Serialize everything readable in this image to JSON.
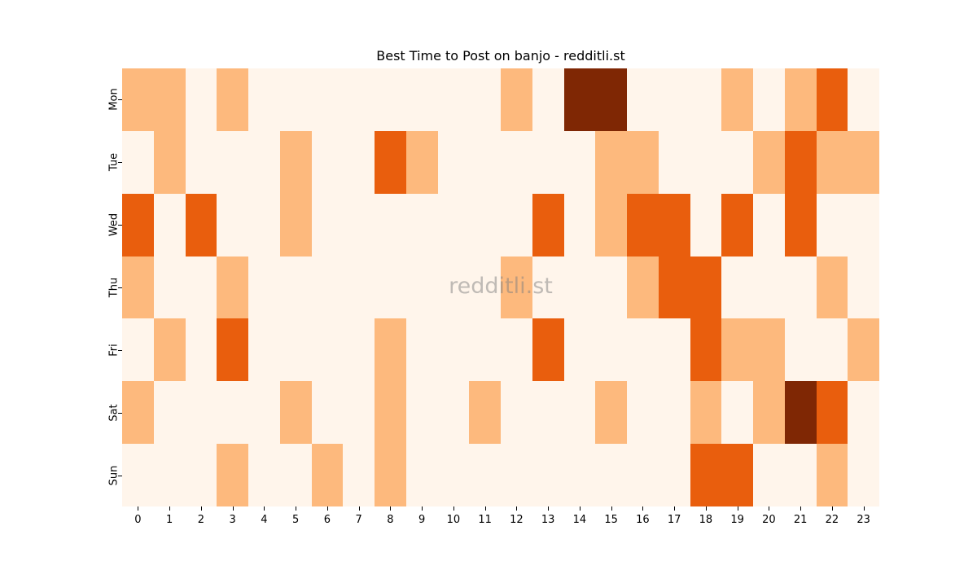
{
  "chart_data": {
    "type": "heatmap",
    "title": "Best Time to Post on banjo - redditli.st",
    "xlabel": "",
    "ylabel": "",
    "x": [
      "0",
      "1",
      "2",
      "3",
      "4",
      "5",
      "6",
      "7",
      "8",
      "9",
      "10",
      "11",
      "12",
      "13",
      "14",
      "15",
      "16",
      "17",
      "18",
      "19",
      "20",
      "21",
      "22",
      "23"
    ],
    "y": [
      "Mon",
      "Tue",
      "Wed",
      "Thu",
      "Fri",
      "Sat",
      "Sun"
    ],
    "values": [
      [
        1,
        1,
        0,
        1,
        0,
        0,
        0,
        0,
        0,
        0,
        0,
        0,
        1,
        0,
        3,
        3,
        0,
        0,
        0,
        1,
        0,
        1,
        2,
        0
      ],
      [
        0,
        1,
        0,
        0,
        0,
        1,
        0,
        0,
        2,
        1,
        0,
        0,
        0,
        0,
        0,
        1,
        1,
        0,
        0,
        0,
        1,
        2,
        1,
        1
      ],
      [
        2,
        0,
        2,
        0,
        0,
        1,
        0,
        0,
        0,
        0,
        0,
        0,
        0,
        2,
        0,
        1,
        2,
        2,
        0,
        2,
        0,
        2,
        0,
        0
      ],
      [
        1,
        0,
        0,
        1,
        0,
        0,
        0,
        0,
        0,
        0,
        0,
        0,
        1,
        0,
        0,
        0,
        1,
        2,
        2,
        0,
        0,
        0,
        1,
        0
      ],
      [
        0,
        1,
        0,
        2,
        0,
        0,
        0,
        0,
        1,
        0,
        0,
        0,
        0,
        2,
        0,
        0,
        0,
        0,
        2,
        1,
        1,
        0,
        0,
        1
      ],
      [
        1,
        0,
        0,
        0,
        0,
        1,
        0,
        0,
        1,
        0,
        0,
        1,
        0,
        0,
        0,
        1,
        0,
        0,
        1,
        0,
        1,
        3,
        2,
        0
      ],
      [
        0,
        0,
        0,
        1,
        0,
        0,
        1,
        0,
        1,
        0,
        0,
        0,
        0,
        0,
        0,
        0,
        0,
        0,
        2,
        2,
        0,
        0,
        1,
        0
      ]
    ],
    "colormap": "Oranges",
    "level_colors": [
      "#fff5eb",
      "#fdb97d",
      "#e95e0d",
      "#7f2704"
    ],
    "colorbar": false,
    "grid": false,
    "watermark": "redditli.st"
  }
}
